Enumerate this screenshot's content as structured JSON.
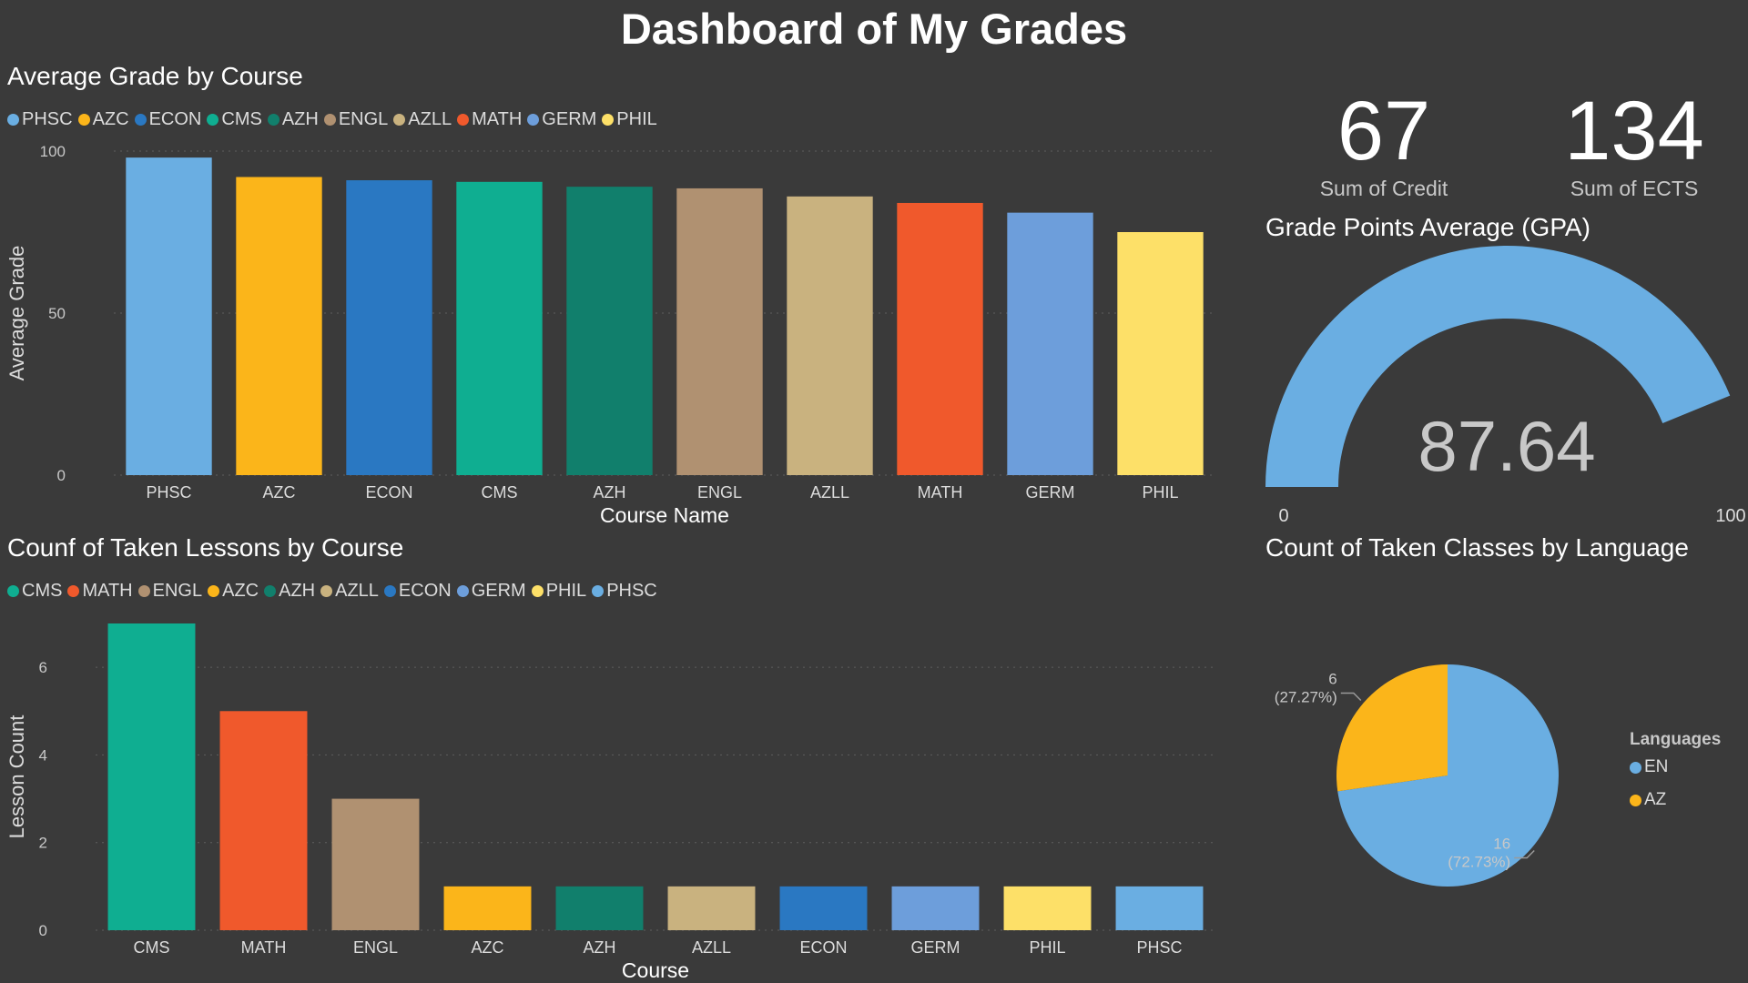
{
  "title": "Dashboard of My Grades",
  "colors": {
    "PHSC": "#6aaee2",
    "AZC": "#fbb51a",
    "ECON": "#2a78c2",
    "CMS": "#0fae91",
    "AZH": "#117f6c",
    "ENGL": "#b09171",
    "AZLL": "#c9b27f",
    "MATH": "#f0592c",
    "GERM": "#6d9edb",
    "PHIL": "#fde068",
    "EN": "#6aaee2",
    "AZ": "#fbb51a",
    "background": "#3a3a3a"
  },
  "kpis": {
    "credit": {
      "value": "67",
      "label": "Sum of Credit"
    },
    "ects": {
      "value": "134",
      "label": "Sum of ECTS"
    }
  },
  "chart_data": [
    {
      "type": "bar",
      "title": "Average Grade by Course",
      "xlabel": "Course Name",
      "ylabel": "Average Grade",
      "categories": [
        "PHSC",
        "AZC",
        "ECON",
        "CMS",
        "AZH",
        "ENGL",
        "AZLL",
        "MATH",
        "GERM",
        "PHIL"
      ],
      "values": [
        98,
        92,
        91,
        90.5,
        89,
        88.5,
        86,
        84,
        81,
        75
      ],
      "legend": [
        "PHSC",
        "AZC",
        "ECON",
        "CMS",
        "AZH",
        "ENGL",
        "AZLL",
        "MATH",
        "GERM",
        "PHIL"
      ],
      "yticks": [
        "0",
        "50",
        "100"
      ],
      "ylim": [
        0,
        100
      ],
      "grid": true,
      "legend_position": "top-left"
    },
    {
      "type": "bar",
      "title": "Counf of Taken Lessons by Course",
      "xlabel": "Course",
      "ylabel": "Lesson Count",
      "categories": [
        "CMS",
        "MATH",
        "ENGL",
        "AZC",
        "AZH",
        "AZLL",
        "ECON",
        "GERM",
        "PHIL",
        "PHSC"
      ],
      "values": [
        7,
        5,
        3,
        1,
        1,
        1,
        1,
        1,
        1,
        1
      ],
      "legend": [
        "CMS",
        "MATH",
        "ENGL",
        "AZC",
        "AZH",
        "AZLL",
        "ECON",
        "GERM",
        "PHIL",
        "PHSC"
      ],
      "yticks": [
        "0",
        "2",
        "4",
        "6"
      ],
      "ylim": [
        0,
        7
      ],
      "grid": true,
      "legend_position": "top-left"
    },
    {
      "type": "gauge",
      "title": "Grade Points Average (GPA)",
      "value": 87.64,
      "value_label": "87.64",
      "min_label": "0",
      "max_label": "100",
      "range": [
        0,
        100
      ]
    },
    {
      "type": "pie",
      "title": "Count of Taken Classes by Language",
      "legend_title": "Languages",
      "slices": [
        {
          "name": "EN",
          "value": 16,
          "label_value": "16",
          "label_pct": "(72.73%)"
        },
        {
          "name": "AZ",
          "value": 6,
          "label_value": "6",
          "label_pct": "(27.27%)"
        }
      ],
      "legend_position": "right"
    }
  ]
}
